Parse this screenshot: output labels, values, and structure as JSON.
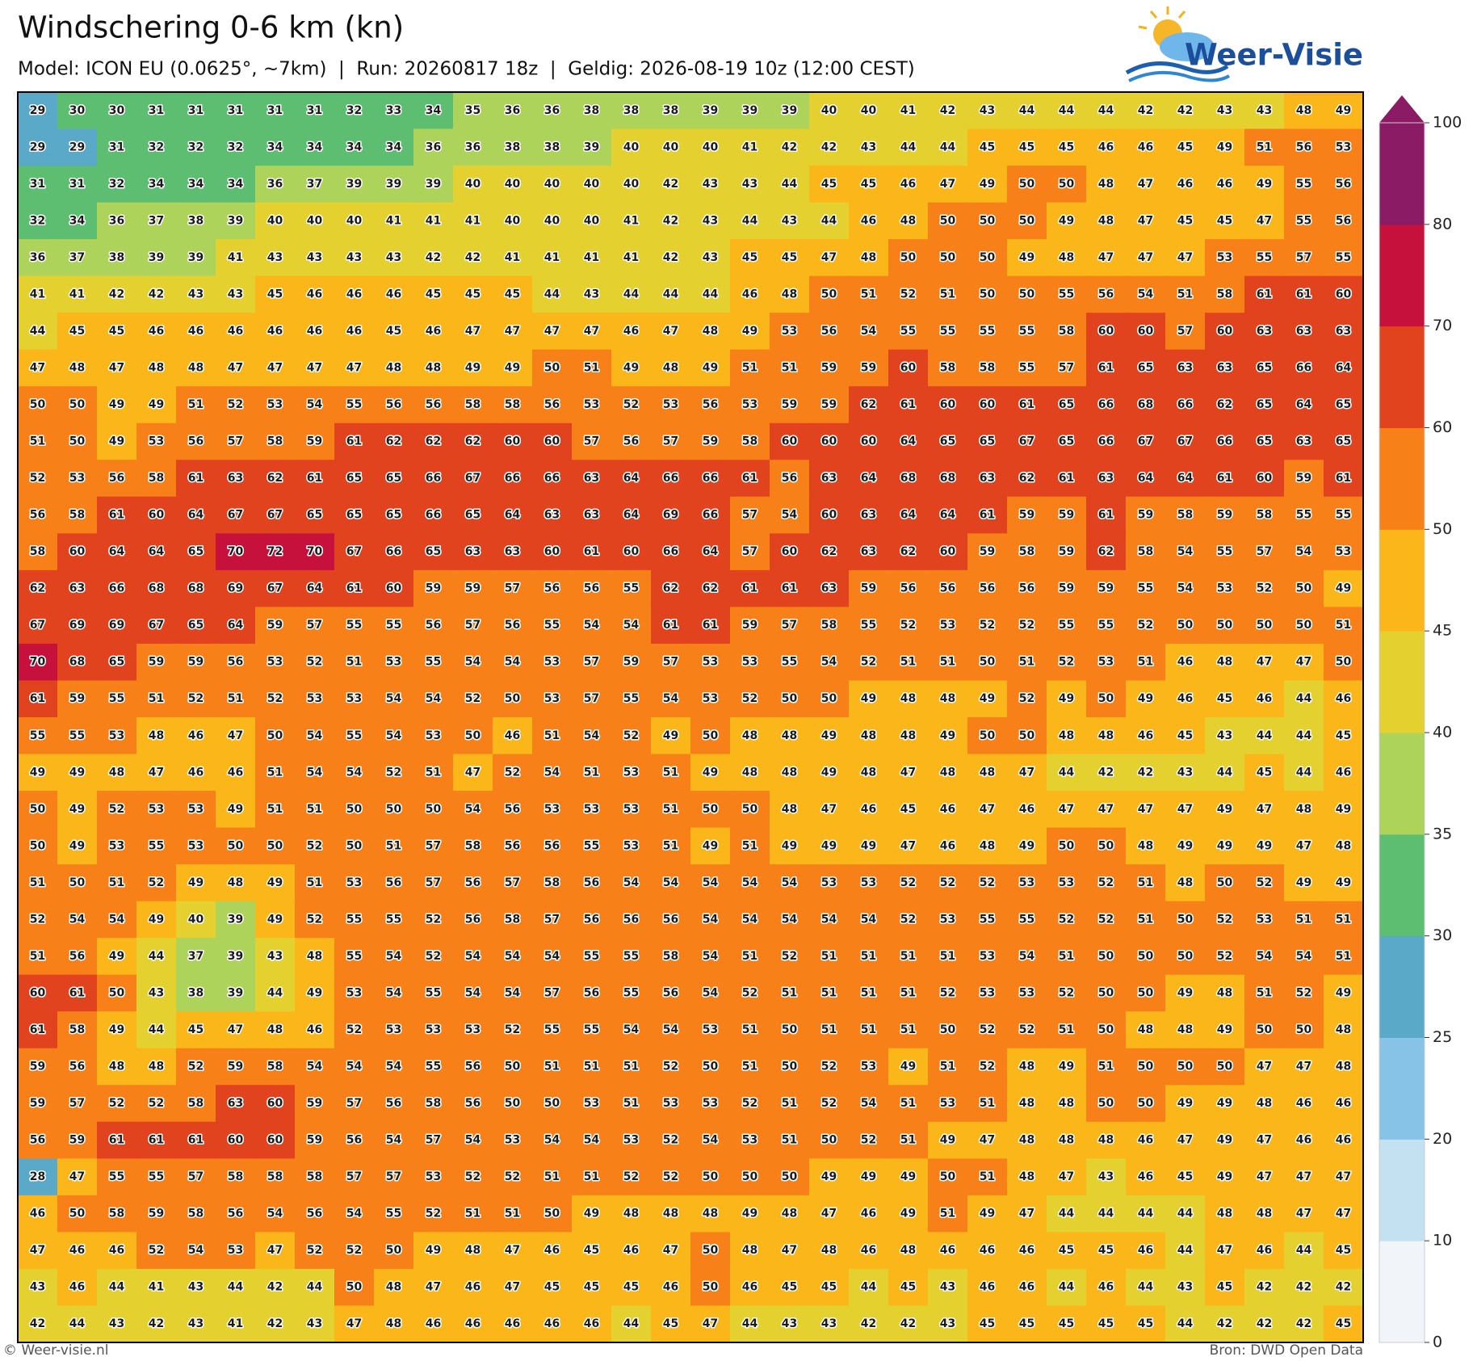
{
  "chart_data": {
    "type": "grid-map",
    "title": "Windschering 0-6 km (kn)",
    "subtitle": "Model: ICON EU (0.0625°, ~7km)  |  Run: 20260817 18z  |  Geldig: 2026-08-19 10z (12:00 CEST)",
    "logo": "Weer-Visie",
    "copyright": "© Weer-visie.nl",
    "source": "Bron: DWD Open Data",
    "colorbar": {
      "ticks": [
        0,
        10,
        20,
        25,
        30,
        35,
        40,
        45,
        50,
        60,
        70,
        80,
        100
      ],
      "colors": [
        "#f1f5fa",
        "#c4e1f2",
        "#86c3e6",
        "#5aa9c9",
        "#5dbe72",
        "#add35b",
        "#e4d02f",
        "#fbb719",
        "#f88018",
        "#e2431f",
        "#c7113d",
        "#8a1b64"
      ],
      "extend": "max"
    },
    "values": [
      [
        29,
        30,
        30,
        31,
        31,
        31,
        31,
        31,
        32,
        33,
        34,
        35,
        36,
        36,
        38,
        38,
        38,
        39,
        39,
        39,
        40,
        40,
        41,
        42,
        43,
        44,
        44,
        44,
        42,
        42,
        43,
        43,
        48,
        49
      ],
      [
        29,
        29,
        31,
        32,
        32,
        32,
        34,
        34,
        34,
        34,
        36,
        36,
        38,
        38,
        39,
        40,
        40,
        40,
        41,
        42,
        42,
        43,
        44,
        44,
        45,
        45,
        45,
        46,
        46,
        45,
        49,
        51,
        56,
        53
      ],
      [
        31,
        31,
        32,
        34,
        34,
        34,
        36,
        37,
        39,
        39,
        39,
        40,
        40,
        40,
        40,
        40,
        42,
        43,
        43,
        44,
        45,
        45,
        46,
        47,
        49,
        50,
        50,
        48,
        47,
        46,
        46,
        49,
        55,
        56
      ],
      [
        32,
        34,
        36,
        37,
        38,
        39,
        40,
        40,
        40,
        41,
        41,
        41,
        40,
        40,
        40,
        41,
        42,
        43,
        44,
        43,
        44,
        46,
        48,
        50,
        50,
        50,
        49,
        48,
        47,
        45,
        45,
        47,
        55,
        56
      ],
      [
        36,
        37,
        38,
        39,
        39,
        41,
        43,
        43,
        43,
        43,
        42,
        42,
        41,
        41,
        41,
        41,
        42,
        43,
        45,
        45,
        47,
        48,
        50,
        50,
        50,
        49,
        48,
        47,
        47,
        47,
        53,
        55,
        57,
        55
      ],
      [
        41,
        41,
        42,
        42,
        43,
        43,
        45,
        46,
        46,
        46,
        45,
        45,
        45,
        44,
        43,
        44,
        44,
        44,
        46,
        48,
        50,
        51,
        52,
        51,
        50,
        50,
        55,
        56,
        54,
        51,
        58,
        61,
        61,
        60
      ],
      [
        44,
        45,
        45,
        46,
        46,
        46,
        46,
        46,
        46,
        45,
        46,
        47,
        47,
        47,
        47,
        46,
        47,
        48,
        49,
        53,
        56,
        54,
        55,
        55,
        55,
        55,
        58,
        60,
        60,
        57,
        60,
        63,
        63,
        63
      ],
      [
        47,
        48,
        47,
        48,
        48,
        47,
        47,
        47,
        47,
        48,
        48,
        49,
        49,
        50,
        51,
        49,
        48,
        49,
        51,
        51,
        59,
        59,
        60,
        58,
        58,
        55,
        57,
        61,
        65,
        63,
        63,
        65,
        66,
        64
      ],
      [
        50,
        50,
        49,
        49,
        51,
        52,
        53,
        54,
        55,
        56,
        56,
        58,
        58,
        56,
        53,
        52,
        53,
        56,
        53,
        59,
        59,
        62,
        61,
        60,
        60,
        61,
        65,
        66,
        68,
        66,
        62,
        65,
        64,
        65
      ],
      [
        51,
        50,
        49,
        53,
        56,
        57,
        58,
        59,
        61,
        62,
        62,
        62,
        60,
        60,
        57,
        56,
        57,
        59,
        58,
        60,
        60,
        60,
        64,
        65,
        65,
        67,
        65,
        66,
        67,
        67,
        66,
        65,
        63,
        65
      ],
      [
        52,
        53,
        56,
        58,
        61,
        63,
        62,
        61,
        65,
        65,
        66,
        67,
        66,
        66,
        63,
        64,
        66,
        66,
        61,
        56,
        63,
        64,
        68,
        68,
        63,
        62,
        61,
        63,
        64,
        64,
        61,
        60,
        59,
        61
      ],
      [
        56,
        58,
        61,
        60,
        64,
        67,
        67,
        65,
        65,
        65,
        66,
        65,
        64,
        63,
        63,
        64,
        69,
        66,
        57,
        54,
        60,
        63,
        64,
        64,
        61,
        59,
        59,
        61,
        59,
        58,
        59,
        58,
        55,
        55
      ],
      [
        58,
        60,
        64,
        64,
        65,
        70,
        72,
        70,
        67,
        66,
        65,
        63,
        63,
        60,
        61,
        60,
        66,
        64,
        57,
        60,
        62,
        63,
        62,
        60,
        59,
        58,
        59,
        62,
        58,
        54,
        55,
        57,
        54,
        53
      ],
      [
        62,
        63,
        66,
        68,
        68,
        69,
        67,
        64,
        61,
        60,
        59,
        59,
        57,
        56,
        56,
        55,
        62,
        62,
        61,
        61,
        63,
        59,
        56,
        56,
        56,
        56,
        59,
        59,
        55,
        54,
        53,
        52,
        50,
        49
      ],
      [
        67,
        69,
        69,
        67,
        65,
        64,
        59,
        57,
        55,
        55,
        56,
        57,
        56,
        55,
        54,
        54,
        61,
        61,
        59,
        57,
        58,
        55,
        52,
        53,
        52,
        52,
        55,
        55,
        52,
        50,
        50,
        50,
        50,
        51
      ],
      [
        70,
        68,
        65,
        59,
        59,
        56,
        53,
        52,
        51,
        53,
        55,
        54,
        54,
        53,
        57,
        59,
        57,
        53,
        53,
        55,
        54,
        52,
        51,
        51,
        50,
        51,
        52,
        53,
        51,
        46,
        48,
        47,
        47,
        50
      ],
      [
        61,
        59,
        55,
        51,
        52,
        51,
        52,
        53,
        53,
        54,
        54,
        52,
        50,
        53,
        57,
        55,
        54,
        53,
        52,
        50,
        50,
        49,
        48,
        48,
        49,
        52,
        49,
        50,
        49,
        46,
        45,
        46,
        44,
        46
      ],
      [
        55,
        55,
        53,
        48,
        46,
        47,
        50,
        54,
        55,
        54,
        53,
        50,
        46,
        51,
        54,
        52,
        49,
        50,
        48,
        48,
        49,
        48,
        48,
        49,
        50,
        50,
        48,
        48,
        46,
        45,
        43,
        44,
        44,
        45
      ],
      [
        49,
        49,
        48,
        47,
        46,
        46,
        51,
        54,
        54,
        52,
        51,
        47,
        52,
        54,
        51,
        53,
        51,
        49,
        48,
        48,
        49,
        48,
        47,
        48,
        48,
        47,
        44,
        42,
        42,
        43,
        44,
        45,
        44,
        46
      ],
      [
        50,
        49,
        52,
        53,
        53,
        49,
        51,
        51,
        50,
        50,
        50,
        54,
        56,
        53,
        53,
        53,
        51,
        50,
        50,
        48,
        47,
        46,
        45,
        46,
        47,
        46,
        47,
        47,
        47,
        47,
        49,
        47,
        48,
        49
      ],
      [
        50,
        49,
        53,
        55,
        53,
        50,
        50,
        52,
        50,
        51,
        57,
        58,
        56,
        56,
        55,
        53,
        51,
        49,
        51,
        49,
        49,
        49,
        47,
        46,
        48,
        49,
        50,
        50,
        48,
        49,
        49,
        49,
        47,
        48
      ],
      [
        51,
        50,
        51,
        52,
        49,
        48,
        49,
        51,
        53,
        56,
        57,
        56,
        57,
        58,
        56,
        54,
        54,
        54,
        54,
        54,
        53,
        53,
        52,
        52,
        52,
        53,
        53,
        52,
        51,
        48,
        50,
        52,
        49,
        49
      ],
      [
        52,
        54,
        54,
        49,
        40,
        39,
        49,
        52,
        55,
        55,
        52,
        56,
        58,
        57,
        56,
        56,
        56,
        54,
        54,
        54,
        54,
        54,
        52,
        53,
        55,
        55,
        52,
        52,
        51,
        50,
        52,
        53,
        51,
        51
      ],
      [
        51,
        56,
        49,
        44,
        37,
        39,
        43,
        48,
        55,
        54,
        52,
        54,
        54,
        54,
        55,
        55,
        58,
        54,
        51,
        52,
        51,
        51,
        51,
        51,
        53,
        54,
        51,
        50,
        50,
        50,
        52,
        54,
        54,
        51
      ],
      [
        60,
        61,
        50,
        43,
        38,
        39,
        44,
        49,
        53,
        54,
        55,
        54,
        54,
        57,
        56,
        55,
        56,
        54,
        52,
        51,
        51,
        51,
        51,
        52,
        53,
        53,
        52,
        50,
        50,
        49,
        48,
        51,
        52,
        49
      ],
      [
        61,
        58,
        49,
        44,
        45,
        47,
        48,
        46,
        52,
        53,
        53,
        53,
        52,
        55,
        55,
        54,
        54,
        53,
        51,
        50,
        51,
        51,
        51,
        50,
        52,
        52,
        51,
        50,
        48,
        48,
        49,
        50,
        50,
        48
      ],
      [
        59,
        56,
        48,
        48,
        52,
        59,
        58,
        54,
        54,
        54,
        55,
        56,
        50,
        51,
        51,
        51,
        52,
        50,
        51,
        50,
        52,
        53,
        49,
        51,
        52,
        48,
        49,
        51,
        50,
        50,
        50,
        47,
        47,
        48
      ],
      [
        59,
        57,
        52,
        52,
        58,
        63,
        60,
        59,
        57,
        56,
        58,
        56,
        50,
        50,
        53,
        51,
        53,
        53,
        52,
        51,
        52,
        54,
        51,
        53,
        51,
        48,
        48,
        50,
        50,
        49,
        49,
        48,
        46,
        46
      ],
      [
        56,
        59,
        61,
        61,
        61,
        60,
        60,
        59,
        56,
        54,
        57,
        54,
        53,
        54,
        54,
        53,
        52,
        54,
        53,
        51,
        50,
        52,
        51,
        49,
        47,
        48,
        48,
        48,
        46,
        47,
        49,
        47,
        46,
        46
      ],
      [
        28,
        47,
        55,
        55,
        57,
        58,
        58,
        58,
        57,
        57,
        53,
        52,
        52,
        51,
        51,
        52,
        52,
        50,
        50,
        50,
        49,
        49,
        49,
        50,
        51,
        48,
        47,
        43,
        46,
        45,
        49,
        47,
        47,
        47
      ],
      [
        46,
        50,
        58,
        59,
        58,
        56,
        54,
        56,
        54,
        55,
        52,
        51,
        51,
        50,
        49,
        48,
        48,
        48,
        49,
        48,
        47,
        46,
        49,
        51,
        49,
        47,
        44,
        44,
        44,
        44,
        48,
        48,
        47,
        47
      ],
      [
        47,
        46,
        46,
        52,
        54,
        53,
        47,
        52,
        52,
        50,
        49,
        48,
        47,
        46,
        45,
        46,
        47,
        50,
        48,
        47,
        48,
        46,
        48,
        46,
        46,
        46,
        45,
        45,
        46,
        44,
        47,
        46,
        44,
        45
      ],
      [
        43,
        46,
        44,
        41,
        43,
        44,
        42,
        44,
        50,
        48,
        47,
        46,
        47,
        45,
        45,
        45,
        46,
        50,
        46,
        45,
        45,
        44,
        45,
        43,
        46,
        46,
        44,
        46,
        44,
        43,
        45,
        42,
        42,
        42
      ],
      [
        42,
        44,
        43,
        42,
        43,
        41,
        42,
        43,
        47,
        48,
        46,
        46,
        46,
        46,
        46,
        44,
        45,
        47,
        44,
        43,
        43,
        42,
        42,
        43,
        45,
        45,
        45,
        45,
        45,
        44,
        42,
        42,
        42,
        45
      ]
    ]
  }
}
